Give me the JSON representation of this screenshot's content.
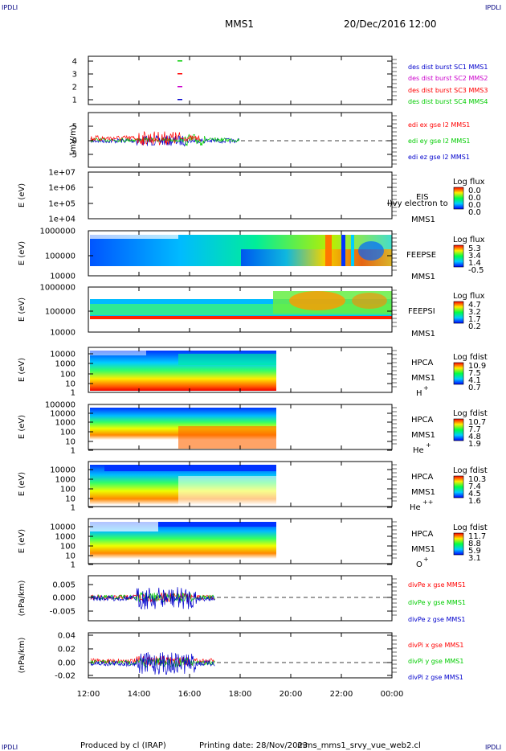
{
  "corner_label": "IPDLI",
  "header": {
    "spacecraft": "MMS1",
    "datetime": "20/Dec/2016 12:00"
  },
  "x_ticks": [
    "12:00",
    "14:00",
    "16:00",
    "18:00",
    "20:00",
    "22:00",
    "00:00"
  ],
  "footer": {
    "produced": "Produced by cl (IRAP)",
    "printed": "Printing date: 28/Nov/2023",
    "file": "mms_mms1_srvy_vue_web2.cl"
  },
  "colors": {
    "red": "#ff0000",
    "green": "#00cc00",
    "blue": "#0000cc",
    "magenta": "#cc00cc",
    "navy": "#000080"
  },
  "panels": {
    "burst": {
      "yticks": [
        "4",
        "3",
        "2",
        "1"
      ],
      "legend": [
        {
          "text": "des dist burst SC1 MMS1",
          "color": "#0000cc"
        },
        {
          "text": "des dist burst SC2 MMS2",
          "color": "#cc00cc"
        },
        {
          "text": "des dist burst SC3 MMS3",
          "color": "#ff0000"
        },
        {
          "text": "des dist burst SC4 MMS4",
          "color": "#00cc00"
        }
      ]
    },
    "edi": {
      "ylabel": "(mV/m)",
      "yticks": [
        "5",
        "0",
        "-5"
      ],
      "legend": [
        {
          "text": "edi ex gse l2 MMS1",
          "color": "#ff0000"
        },
        {
          "text": "edi ey gse l2 MMS1",
          "color": "#00cc00"
        },
        {
          "text": "edi ez gse l2 MMS1",
          "color": "#0000cc"
        }
      ]
    },
    "eis": {
      "ylabel": "E (eV)",
      "yticks": [
        "1e+07",
        "1e+06",
        "1e+05",
        "1e+04"
      ],
      "inst": [
        "EIS",
        "MMS1"
      ],
      "overlay": "l)vy electron to",
      "cbar_title": "Log flux",
      "cbar_ticks": [
        "0.0",
        "0.0",
        "0.0",
        "0.0"
      ]
    },
    "feepse": {
      "ylabel": "E (eV)",
      "yticks": [
        "1000000",
        "100000",
        "10000"
      ],
      "inst": [
        "FEEPSE",
        "MMS1"
      ],
      "cbar_title": "Log flux",
      "cbar_ticks": [
        "5.3",
        "3.4",
        "1.4",
        "-0.5"
      ]
    },
    "feepsi": {
      "ylabel": "E (eV)",
      "yticks": [
        "1000000",
        "100000",
        "10000"
      ],
      "inst": [
        "FEEPSI",
        "MMS1"
      ],
      "cbar_title": "Log flux",
      "cbar_ticks": [
        "4.7",
        "3.2",
        "1.7",
        "0.2"
      ]
    },
    "hpca_h": {
      "ylabel": "E (eV)",
      "yticks": [
        "10000",
        "1000",
        "100",
        "10",
        "1"
      ],
      "inst": [
        "HPCA",
        "MMS1"
      ],
      "species": "H",
      "species_sup": "+",
      "cbar_title": "Log fdist",
      "cbar_ticks": [
        "10.9",
        "7.5",
        "4.1",
        "0.7"
      ]
    },
    "hpca_he": {
      "ylabel": "E (eV)",
      "yticks": [
        "100000",
        "10000",
        "1000",
        "100",
        "10",
        "1"
      ],
      "inst": [
        "HPCA",
        "MMS1"
      ],
      "species": "He",
      "species_sup": "+",
      "cbar_title": "Log fdist",
      "cbar_ticks": [
        "10.7",
        "7.7",
        "4.8",
        "1.9"
      ]
    },
    "hpca_hepp": {
      "ylabel": "E (eV)",
      "yticks": [
        "10000",
        "1000",
        "100",
        "10",
        "1"
      ],
      "inst": [
        "HPCA",
        "MMS1"
      ],
      "species": "He",
      "species_sup": "++",
      "cbar_title": "Log fdist",
      "cbar_ticks": [
        "10.3",
        "7.4",
        "4.5",
        "1.6"
      ]
    },
    "hpca_o": {
      "ylabel": "E (eV)",
      "yticks": [
        "10000",
        "1000",
        "100",
        "10",
        "1"
      ],
      "inst": [
        "HPCA",
        "MMS1"
      ],
      "species": "O",
      "species_sup": "+",
      "cbar_title": "Log fdist",
      "cbar_ticks": [
        "11.7",
        "8.8",
        "5.9",
        "3.1"
      ]
    },
    "divpe": {
      "ylabel": "(nPa/km)",
      "yticks": [
        "0.005",
        "0.000",
        "-0.005"
      ],
      "legend": [
        {
          "text": "divPe x gse MMS1",
          "color": "#ff0000"
        },
        {
          "text": "divPe y gse MMS1",
          "color": "#00cc00"
        },
        {
          "text": "divPe z gse MMS1",
          "color": "#0000cc"
        }
      ]
    },
    "divpi": {
      "ylabel": "(nPa/km)",
      "yticks": [
        "0.04",
        "0.02",
        "0.00",
        "-0.02"
      ],
      "legend": [
        {
          "text": "divPi x gse MMS1",
          "color": "#ff0000"
        },
        {
          "text": "divPi y gse MMS1",
          "color": "#00cc00"
        },
        {
          "text": "divPi z gse MMS1",
          "color": "#0000cc"
        }
      ]
    }
  },
  "chart_data": {
    "type": "line",
    "title": "MMS1",
    "x_range": [
      "12:00",
      "00:00"
    ],
    "x_axis": "time of day, 20/Dec/2016",
    "burst_intervals": [
      {
        "spacecraft": "MMS1",
        "level": 1,
        "start": "15:35",
        "end": "15:45"
      },
      {
        "spacecraft": "MMS2",
        "level": 2,
        "start": "15:35",
        "end": "15:45"
      },
      {
        "spacecraft": "MMS3",
        "level": 3,
        "start": "15:35",
        "end": "15:45"
      },
      {
        "spacecraft": "MMS4",
        "level": 4,
        "start": "15:35",
        "end": "15:45"
      }
    ],
    "edi_field_range_mV_m": [
      -7,
      7
    ],
    "data_coverage": {
      "edi_end": "18:00",
      "hpca_end": "19:30",
      "divpe_end": "17:00",
      "divpi_end": "17:00"
    }
  }
}
